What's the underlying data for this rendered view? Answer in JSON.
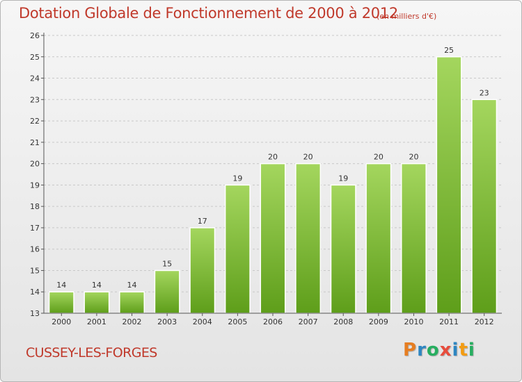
{
  "header": {
    "title": "Dotation Globale de Fonctionnement de 2000 à 2012",
    "unit": "(en milliers d'€)"
  },
  "footer": {
    "commune": "CUSSEY-LES-FORGES",
    "logo_letters": [
      {
        "char": "P",
        "color": "#e67e22"
      },
      {
        "char": "r",
        "color": "#2e86c1"
      },
      {
        "char": "o",
        "color": "#27ae60"
      },
      {
        "char": "x",
        "color": "#e74c3c"
      },
      {
        "char": "i",
        "color": "#2e86c1"
      },
      {
        "char": "t",
        "color": "#f39c12"
      },
      {
        "char": "i",
        "color": "#27ae60"
      }
    ]
  },
  "colors": {
    "title": "#c0392b",
    "bar_top": "#a4d65e",
    "bar_bottom": "#5e9e1a",
    "grid": "#c8c8c8",
    "axis": "#555555"
  },
  "chart_data": {
    "type": "bar",
    "categories": [
      "2000",
      "2001",
      "2002",
      "2003",
      "2004",
      "2005",
      "2006",
      "2007",
      "2008",
      "2009",
      "2010",
      "2011",
      "2012"
    ],
    "values": [
      14,
      14,
      14,
      15,
      17,
      19,
      20,
      20,
      19,
      20,
      20,
      25,
      23
    ],
    "ylim": [
      13,
      26
    ],
    "yticks": [
      13,
      14,
      15,
      16,
      17,
      18,
      19,
      20,
      21,
      22,
      23,
      24,
      25,
      26
    ],
    "grid": true
  }
}
